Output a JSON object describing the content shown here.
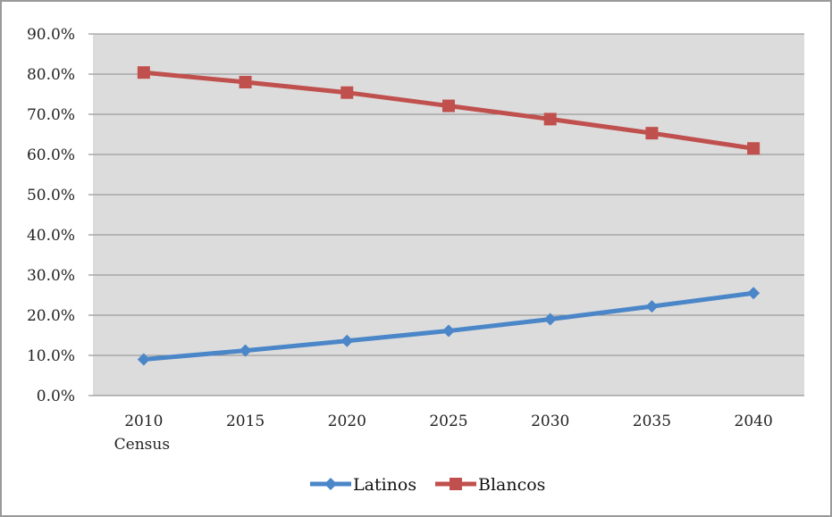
{
  "chart_data": {
    "type": "line",
    "categories": [
      "2010",
      "2015",
      "2020",
      "2025",
      "2030",
      "2035",
      "2040"
    ],
    "category_sublabels": [
      "Census",
      "",
      "",
      "",
      "",
      "",
      ""
    ],
    "y_ticks": [
      "0.0%",
      "10.0%",
      "20.0%",
      "30.0%",
      "40.0%",
      "50.0%",
      "60.0%",
      "70.0%",
      "80.0%",
      "90.0%"
    ],
    "ylim": [
      0,
      90
    ],
    "grid": true,
    "legend_position": "bottom",
    "series": [
      {
        "name": "Latinos",
        "color": "#4a86c8",
        "marker": "diamond",
        "values": [
          9.0,
          11.2,
          13.6,
          16.1,
          19.0,
          22.2,
          25.5
        ]
      },
      {
        "name": "Blancos",
        "color": "#c0504d",
        "marker": "square",
        "values": [
          80.4,
          78.0,
          75.4,
          72.1,
          68.8,
          65.3,
          61.5
        ]
      }
    ]
  }
}
